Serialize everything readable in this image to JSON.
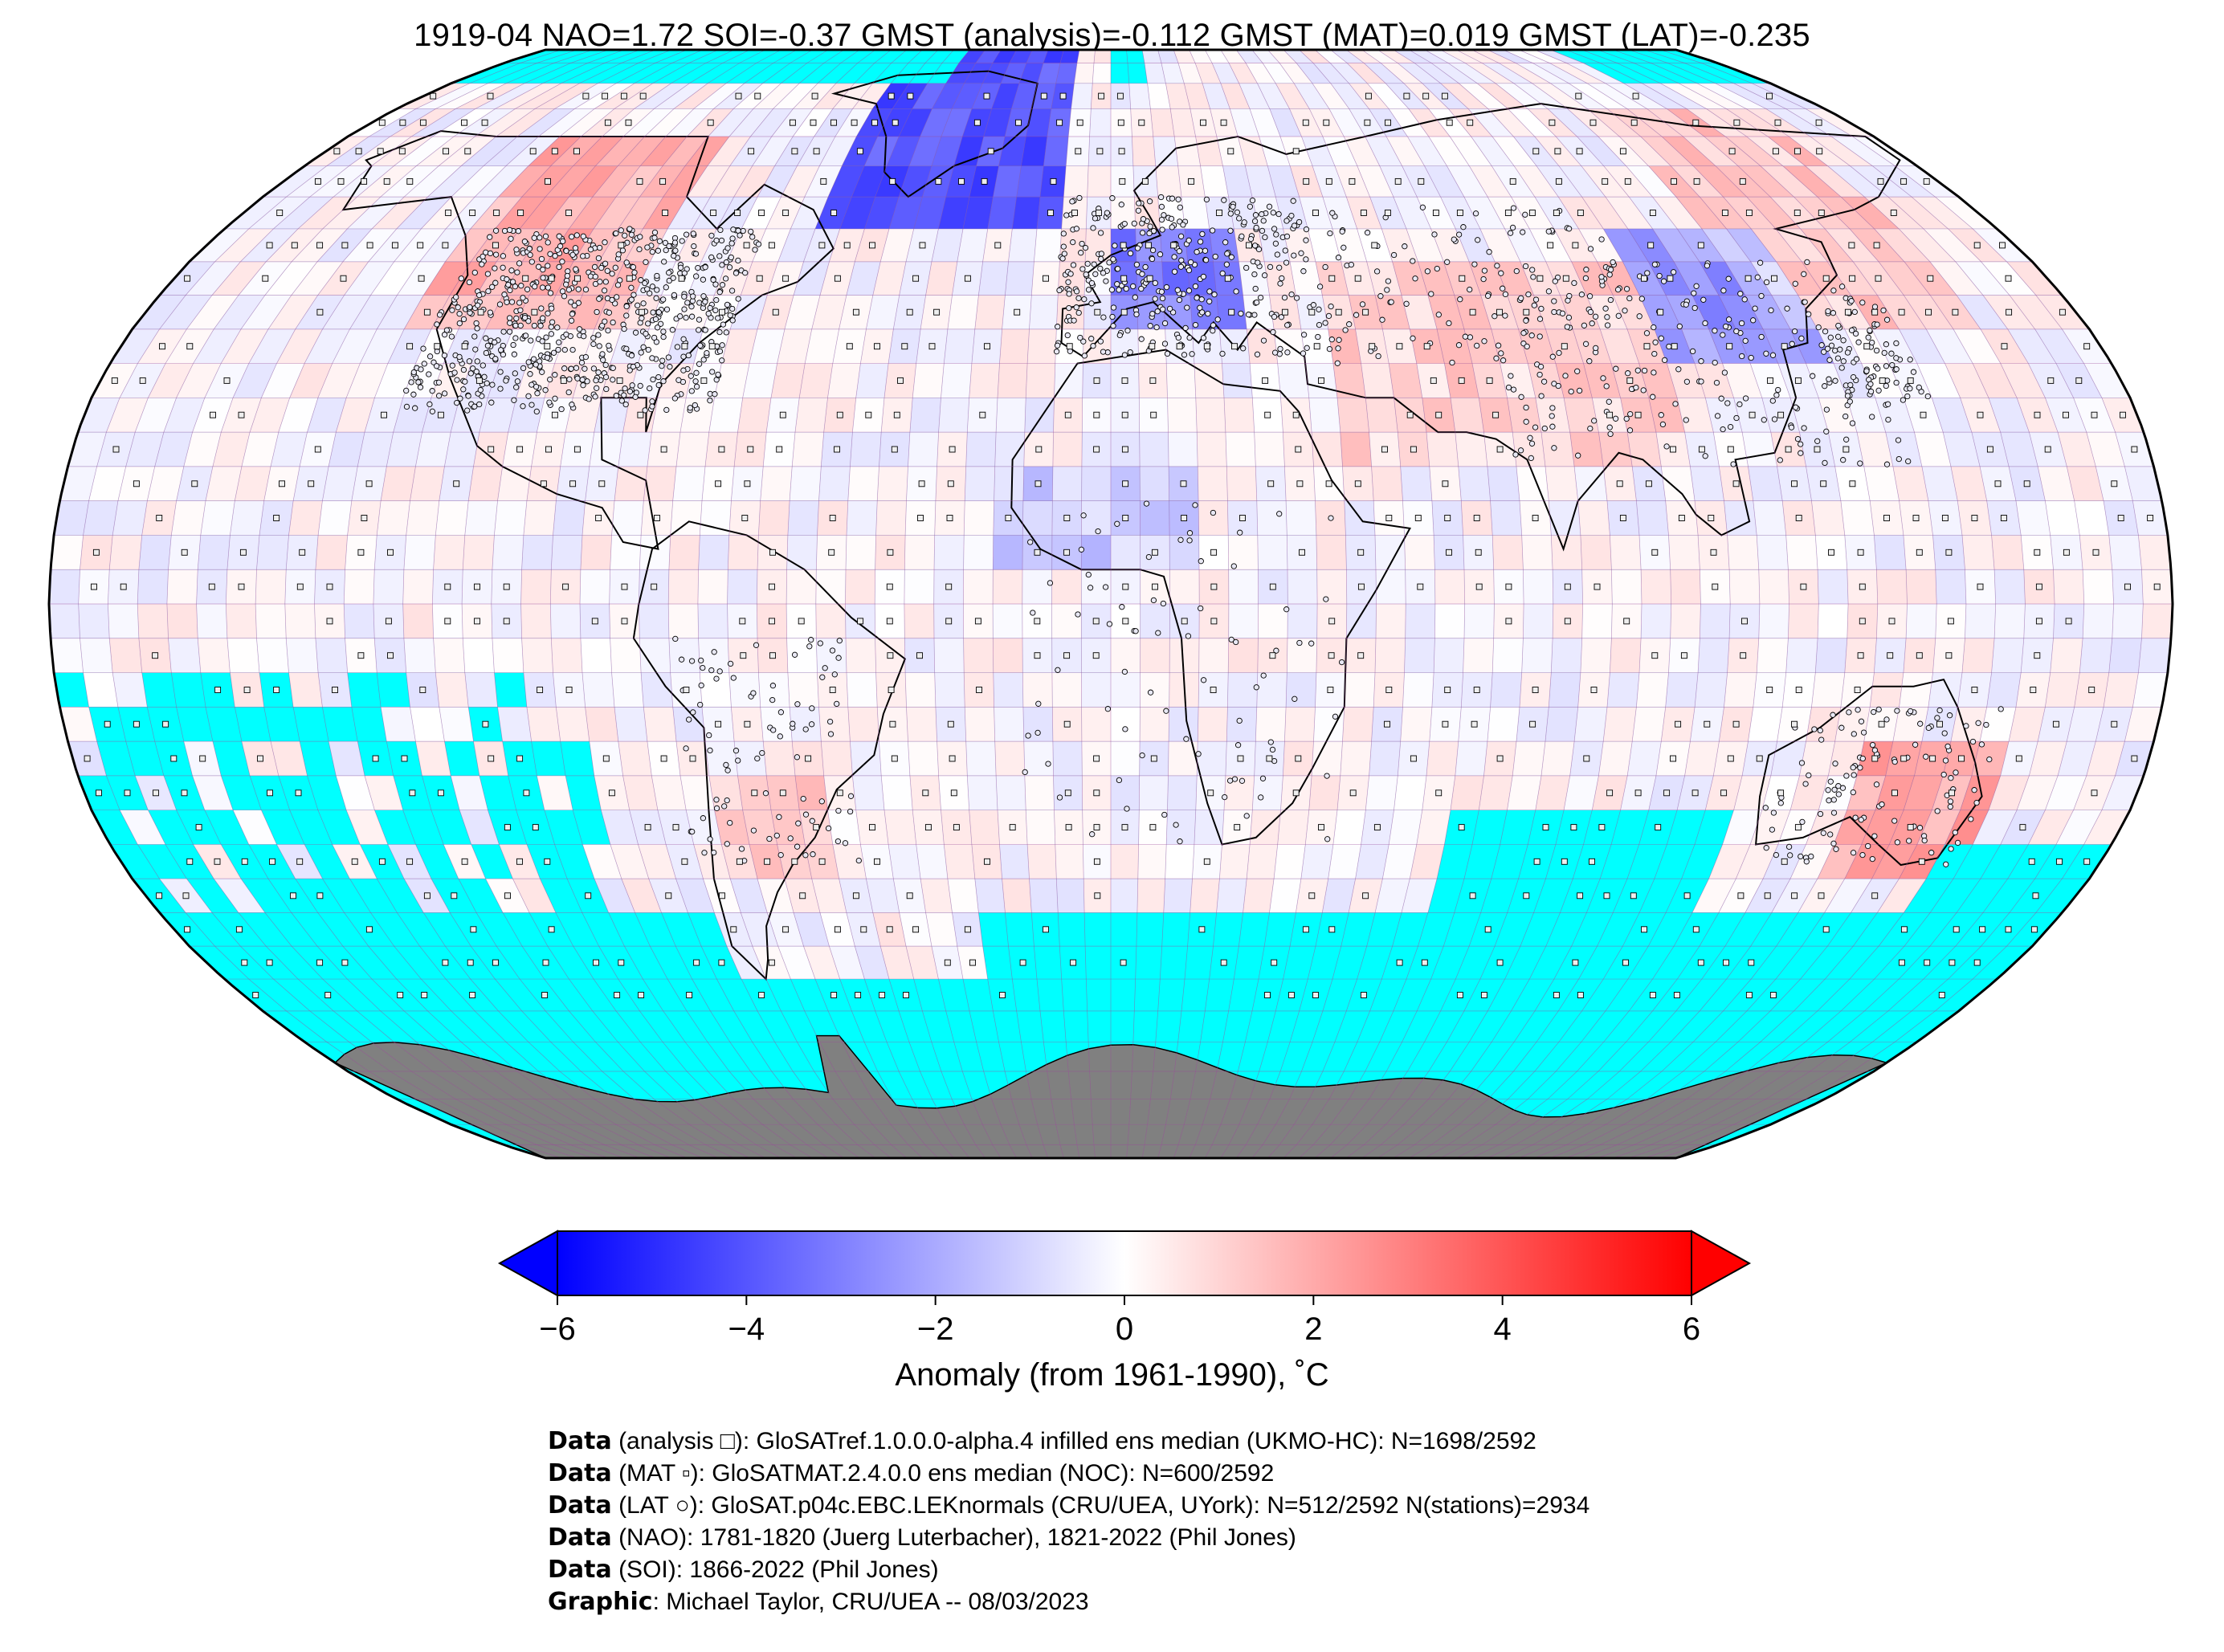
{
  "title": "1919-04 NAO=1.72 SOI=-0.37 GMST (analysis)=-0.112 GMST (MAT)=0.019 GMST (LAT)=-0.235",
  "colorbar": {
    "ticks": [
      "−6",
      "−4",
      "−2",
      "0",
      "2",
      "4",
      "6"
    ],
    "tick_values": [
      -6,
      -4,
      -2,
      0,
      2,
      4,
      6
    ],
    "range": [
      -6,
      6
    ],
    "label": "Anomaly (from 1961-1990), ˚C",
    "colors": {
      "cold": "#0000ff",
      "neutral": "#ffffff",
      "warm": "#ff0000",
      "missing": "#00ffff",
      "antarctica": "#808080"
    }
  },
  "map": {
    "projection": "Robinson",
    "grid_resolution": "5x5 degree",
    "marker_types": {
      "analysis": "square",
      "MAT": "small square",
      "LAT": "circle"
    }
  },
  "credits": [
    {
      "bold": "Data",
      "text": " (analysis □): GloSATref.1.0.0.0-alpha.4 infilled ens median (UKMO-HC): N=1698/2592"
    },
    {
      "bold": "Data",
      "text": " (MAT ▫): GloSATMAT.2.4.0.0 ens median (NOC): N=600/2592"
    },
    {
      "bold": "Data",
      "text": " (LAT ○): GloSAT.p04c.EBC.LEKnormals (CRU/UEA, UYork): N=512/2592 N(stations)=2934"
    },
    {
      "bold": "Data",
      "text": " (NAO): 1781-1820 (Juerg Luterbacher), 1821-2022 (Phil Jones)"
    },
    {
      "bold": "Data",
      "text": " (SOI): 1866-2022 (Phil Jones)"
    },
    {
      "bold": "Graphic",
      "text": ": Michael Taylor, CRU/UEA -- 08/03/2023"
    }
  ]
}
